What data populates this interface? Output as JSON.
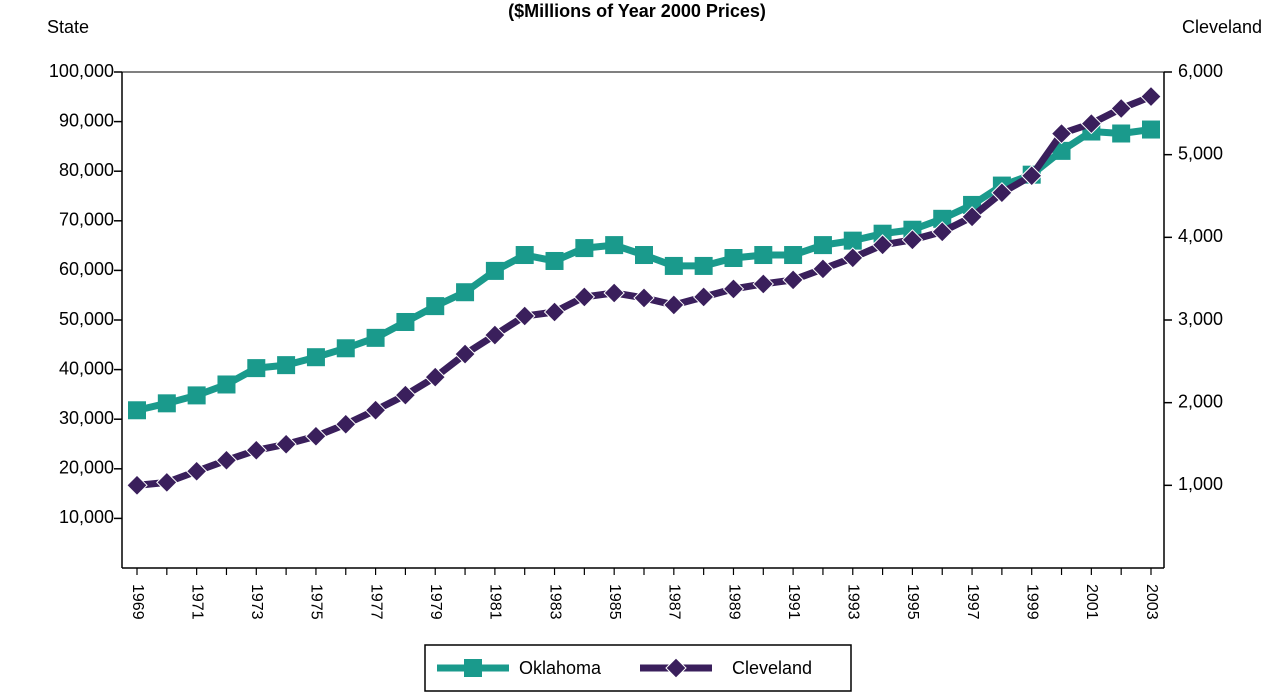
{
  "chart_data": {
    "type": "line",
    "title": "($Millions of Year 2000 Prices)",
    "y_label": "State",
    "y2_label": "Cleveland",
    "categories": [
      "1969",
      null,
      "1971",
      null,
      "1973",
      null,
      "1975",
      null,
      "1977",
      null,
      "1979",
      null,
      "1981",
      null,
      "1983",
      null,
      "1985",
      null,
      "1987",
      null,
      "1989",
      null,
      "1991",
      null,
      "1993",
      null,
      "1995",
      null,
      "1997",
      null,
      "1999",
      null,
      "2001",
      null,
      "2003"
    ],
    "series": [
      {
        "name": "Oklahoma",
        "color": "#1a9a8c",
        "marker": "square",
        "values": [
          31800,
          33200,
          34800,
          37000,
          40300,
          40900,
          42500,
          44300,
          46400,
          49600,
          52800,
          55600,
          59900,
          63100,
          61900,
          64500,
          65100,
          63100,
          60900,
          60900,
          62500,
          63100,
          63100,
          65100,
          66000,
          67400,
          68200,
          70400,
          73200,
          77100,
          79300,
          84100,
          88000,
          87600,
          88400
        ]
      },
      {
        "name": "Cleveland",
        "color": "#3a1f5c",
        "marker": "diamond",
        "axis": "y2",
        "values": [
          1000,
          1036,
          1170,
          1303,
          1424,
          1497,
          1594,
          1739,
          1909,
          2091,
          2309,
          2588,
          2818,
          3048,
          3097,
          3279,
          3327,
          3267,
          3182,
          3279,
          3376,
          3436,
          3485,
          3618,
          3752,
          3909,
          3970,
          4067,
          4248,
          4539,
          4745,
          5255,
          5376,
          5558,
          5703
        ]
      }
    ],
    "ylim": [
      0,
      100000
    ],
    "yticks": [
      {
        "value": 10000,
        "label": "10,000"
      },
      {
        "value": 20000,
        "label": "20,000"
      },
      {
        "value": 30000,
        "label": "30,000"
      },
      {
        "value": 40000,
        "label": "40,000"
      },
      {
        "value": 50000,
        "label": "50,000"
      },
      {
        "value": 60000,
        "label": "60,000"
      },
      {
        "value": 70000,
        "label": "70,000"
      },
      {
        "value": 80000,
        "label": "80,000"
      },
      {
        "value": 90000,
        "label": "90,000"
      },
      {
        "value": 100000,
        "label": "100,000"
      }
    ],
    "y2lim": [
      0,
      6000
    ],
    "y2ticks": [
      {
        "value": 1000,
        "label": "1,000"
      },
      {
        "value": 2000,
        "label": "2,000"
      },
      {
        "value": 3000,
        "label": "3,000"
      },
      {
        "value": 4000,
        "label": "4,000"
      },
      {
        "value": 5000,
        "label": "5,000"
      },
      {
        "value": 6000,
        "label": "6,000"
      }
    ],
    "legend": "bottom"
  }
}
